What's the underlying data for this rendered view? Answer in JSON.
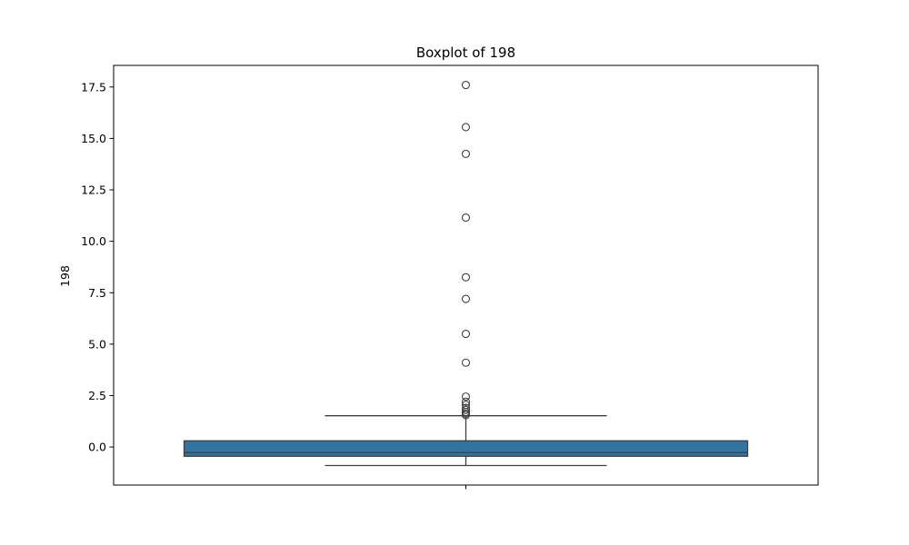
{
  "chart_data": {
    "type": "box",
    "title": "Boxplot of 198",
    "xlabel": "",
    "ylabel": "198",
    "ylim": [
      -1.85,
      18.55
    ],
    "yticks": [
      0.0,
      2.5,
      5.0,
      7.5,
      10.0,
      12.5,
      15.0,
      17.5
    ],
    "ytick_labels": [
      "0.0",
      "2.5",
      "5.0",
      "7.5",
      "10.0",
      "12.5",
      "15.0",
      "17.5"
    ],
    "grid": false,
    "box": {
      "whisker_low": -0.9,
      "q1": -0.45,
      "median": -0.27,
      "q3": 0.3,
      "whisker_high": 1.52,
      "color": "#3274a1",
      "edge_color": "#3f3f3f"
    },
    "outliers": [
      17.6,
      15.55,
      14.25,
      11.15,
      8.25,
      7.2,
      5.5,
      4.1,
      2.45,
      2.2,
      2.05,
      1.9,
      1.8,
      1.7,
      1.62,
      1.55
    ]
  }
}
